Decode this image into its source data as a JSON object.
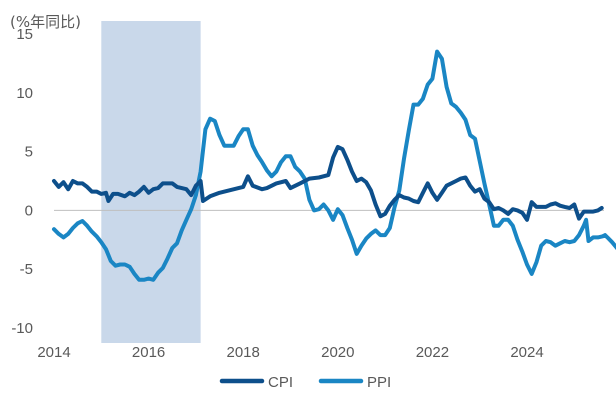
{
  "chart_data": {
    "type": "line",
    "unit_label": "(%年同比)",
    "xlim": [
      2014,
      2025.6
    ],
    "ylim": [
      -10,
      15
    ],
    "x_ticks": [
      2014,
      2016,
      2018,
      2020,
      2022,
      2024
    ],
    "x_tick_labels": [
      "2014",
      "2016",
      "2018",
      "2020",
      "2022",
      "2024"
    ],
    "y_ticks": [
      15,
      10,
      5,
      0,
      -5,
      -10
    ],
    "y_tick_labels": [
      "15",
      "10",
      "5",
      "0",
      "-5",
      "-10"
    ],
    "shaded_region": [
      2015.0,
      2017.1
    ],
    "colors": {
      "CPI": "#0d4f8b",
      "PPI": "#1a86c4",
      "shade": "#c9d8ea",
      "axis": "#bfbfbf"
    },
    "legend": [
      "CPI",
      "PPI"
    ],
    "legend_position": "bottom-center",
    "series": [
      {
        "name": "CPI",
        "points": [
          [
            2014.0,
            2.5
          ],
          [
            2014.1,
            2.0
          ],
          [
            2014.2,
            2.4
          ],
          [
            2014.3,
            1.8
          ],
          [
            2014.4,
            2.5
          ],
          [
            2014.5,
            2.3
          ],
          [
            2014.6,
            2.3
          ],
          [
            2014.7,
            2.0
          ],
          [
            2014.8,
            1.6
          ],
          [
            2014.9,
            1.6
          ],
          [
            2015.0,
            1.4
          ],
          [
            2015.1,
            1.5
          ],
          [
            2015.15,
            0.8
          ],
          [
            2015.25,
            1.4
          ],
          [
            2015.35,
            1.4
          ],
          [
            2015.5,
            1.2
          ],
          [
            2015.6,
            1.5
          ],
          [
            2015.7,
            1.3
          ],
          [
            2015.8,
            1.6
          ],
          [
            2015.9,
            2.0
          ],
          [
            2016.0,
            1.5
          ],
          [
            2016.1,
            1.8
          ],
          [
            2016.2,
            1.9
          ],
          [
            2016.3,
            2.3
          ],
          [
            2016.4,
            2.3
          ],
          [
            2016.5,
            2.3
          ],
          [
            2016.6,
            2.0
          ],
          [
            2016.7,
            1.9
          ],
          [
            2016.8,
            1.8
          ],
          [
            2016.9,
            1.3
          ],
          [
            2017.0,
            2.1
          ],
          [
            2017.1,
            2.5
          ],
          [
            2017.15,
            0.8
          ],
          [
            2017.3,
            1.2
          ],
          [
            2017.5,
            1.5
          ],
          [
            2017.7,
            1.7
          ],
          [
            2017.9,
            1.9
          ],
          [
            2018.0,
            2.0
          ],
          [
            2018.1,
            2.9
          ],
          [
            2018.2,
            2.1
          ],
          [
            2018.4,
            1.8
          ],
          [
            2018.5,
            1.9
          ],
          [
            2018.7,
            2.3
          ],
          [
            2018.9,
            2.5
          ],
          [
            2019.0,
            1.9
          ],
          [
            2019.2,
            2.3
          ],
          [
            2019.4,
            2.7
          ],
          [
            2019.6,
            2.8
          ],
          [
            2019.8,
            3.0
          ],
          [
            2019.9,
            4.5
          ],
          [
            2020.0,
            5.4
          ],
          [
            2020.1,
            5.2
          ],
          [
            2020.2,
            4.3
          ],
          [
            2020.3,
            3.3
          ],
          [
            2020.4,
            2.5
          ],
          [
            2020.5,
            2.7
          ],
          [
            2020.6,
            2.4
          ],
          [
            2020.7,
            1.7
          ],
          [
            2020.8,
            0.5
          ],
          [
            2020.9,
            -0.5
          ],
          [
            2021.0,
            -0.3
          ],
          [
            2021.1,
            0.4
          ],
          [
            2021.2,
            0.9
          ],
          [
            2021.3,
            1.3
          ],
          [
            2021.4,
            1.1
          ],
          [
            2021.5,
            1.0
          ],
          [
            2021.6,
            0.8
          ],
          [
            2021.7,
            0.7
          ],
          [
            2021.8,
            1.5
          ],
          [
            2021.9,
            2.3
          ],
          [
            2022.0,
            1.5
          ],
          [
            2022.1,
            0.9
          ],
          [
            2022.2,
            1.5
          ],
          [
            2022.3,
            2.1
          ],
          [
            2022.5,
            2.5
          ],
          [
            2022.6,
            2.7
          ],
          [
            2022.7,
            2.8
          ],
          [
            2022.8,
            2.1
          ],
          [
            2022.9,
            1.6
          ],
          [
            2023.0,
            1.8
          ],
          [
            2023.1,
            1.0
          ],
          [
            2023.2,
            0.7
          ],
          [
            2023.3,
            0.1
          ],
          [
            2023.4,
            0.2
          ],
          [
            2023.5,
            0.0
          ],
          [
            2023.6,
            -0.3
          ],
          [
            2023.7,
            0.1
          ],
          [
            2023.8,
            0.0
          ],
          [
            2023.9,
            -0.2
          ],
          [
            2024.0,
            -0.8
          ],
          [
            2024.1,
            0.7
          ],
          [
            2024.2,
            0.3
          ],
          [
            2024.3,
            0.3
          ],
          [
            2024.4,
            0.3
          ],
          [
            2024.5,
            0.5
          ],
          [
            2024.6,
            0.6
          ],
          [
            2024.7,
            0.4
          ],
          [
            2024.8,
            0.3
          ],
          [
            2024.9,
            0.2
          ],
          [
            2025.0,
            0.5
          ],
          [
            2025.1,
            -0.7
          ],
          [
            2025.2,
            -0.1
          ],
          [
            2025.3,
            -0.1
          ],
          [
            2025.4,
            -0.1
          ],
          [
            2025.5,
            0.0
          ],
          [
            2025.58,
            0.2
          ]
        ]
      },
      {
        "name": "PPI",
        "points": [
          [
            2014.0,
            -1.6
          ],
          [
            2014.1,
            -2.0
          ],
          [
            2014.2,
            -2.3
          ],
          [
            2014.3,
            -2.0
          ],
          [
            2014.4,
            -1.5
          ],
          [
            2014.5,
            -1.1
          ],
          [
            2014.6,
            -0.9
          ],
          [
            2014.7,
            -1.3
          ],
          [
            2014.8,
            -1.8
          ],
          [
            2014.9,
            -2.2
          ],
          [
            2015.0,
            -2.7
          ],
          [
            2015.1,
            -3.3
          ],
          [
            2015.2,
            -4.3
          ],
          [
            2015.3,
            -4.7
          ],
          [
            2015.4,
            -4.6
          ],
          [
            2015.5,
            -4.6
          ],
          [
            2015.6,
            -4.8
          ],
          [
            2015.7,
            -5.4
          ],
          [
            2015.8,
            -5.9
          ],
          [
            2015.9,
            -5.9
          ],
          [
            2016.0,
            -5.8
          ],
          [
            2016.1,
            -5.9
          ],
          [
            2016.2,
            -5.3
          ],
          [
            2016.3,
            -4.9
          ],
          [
            2016.4,
            -4.1
          ],
          [
            2016.5,
            -3.2
          ],
          [
            2016.6,
            -2.8
          ],
          [
            2016.7,
            -1.7
          ],
          [
            2016.8,
            -0.8
          ],
          [
            2016.9,
            0.1
          ],
          [
            2017.0,
            1.3
          ],
          [
            2017.1,
            3.3
          ],
          [
            2017.2,
            6.9
          ],
          [
            2017.3,
            7.8
          ],
          [
            2017.4,
            7.6
          ],
          [
            2017.5,
            6.4
          ],
          [
            2017.6,
            5.5
          ],
          [
            2017.7,
            5.5
          ],
          [
            2017.8,
            5.5
          ],
          [
            2017.9,
            6.3
          ],
          [
            2018.0,
            6.9
          ],
          [
            2018.1,
            6.9
          ],
          [
            2018.2,
            5.5
          ],
          [
            2018.3,
            4.7
          ],
          [
            2018.4,
            4.1
          ],
          [
            2018.5,
            3.4
          ],
          [
            2018.6,
            2.9
          ],
          [
            2018.7,
            3.3
          ],
          [
            2018.8,
            4.1
          ],
          [
            2018.9,
            4.6
          ],
          [
            2019.0,
            4.6
          ],
          [
            2019.1,
            3.7
          ],
          [
            2019.2,
            3.3
          ],
          [
            2019.3,
            2.7
          ],
          [
            2019.4,
            0.9
          ],
          [
            2019.5,
            0.0
          ],
          [
            2019.6,
            0.1
          ],
          [
            2019.7,
            0.5
          ],
          [
            2019.8,
            0.0
          ],
          [
            2019.9,
            -0.8
          ],
          [
            2020.0,
            0.1
          ],
          [
            2020.1,
            -0.4
          ],
          [
            2020.2,
            -1.5
          ],
          [
            2020.3,
            -2.5
          ],
          [
            2020.4,
            -3.7
          ],
          [
            2020.5,
            -3.0
          ],
          [
            2020.6,
            -2.4
          ],
          [
            2020.7,
            -2.0
          ],
          [
            2020.8,
            -1.7
          ],
          [
            2020.9,
            -2.1
          ],
          [
            2021.0,
            -2.1
          ],
          [
            2021.1,
            -1.5
          ],
          [
            2021.2,
            0.3
          ],
          [
            2021.3,
            1.7
          ],
          [
            2021.4,
            4.4
          ],
          [
            2021.5,
            6.8
          ],
          [
            2021.6,
            9.0
          ],
          [
            2021.7,
            9.0
          ],
          [
            2021.8,
            9.5
          ],
          [
            2021.9,
            10.7
          ],
          [
            2022.0,
            11.2
          ],
          [
            2022.1,
            13.5
          ],
          [
            2022.2,
            12.9
          ],
          [
            2022.3,
            10.5
          ],
          [
            2022.4,
            9.1
          ],
          [
            2022.5,
            8.8
          ],
          [
            2022.6,
            8.3
          ],
          [
            2022.7,
            7.7
          ],
          [
            2022.8,
            6.4
          ],
          [
            2022.9,
            6.1
          ],
          [
            2023.0,
            4.2
          ],
          [
            2023.1,
            2.3
          ],
          [
            2023.2,
            0.5
          ],
          [
            2023.3,
            -1.3
          ],
          [
            2023.4,
            -1.3
          ],
          [
            2023.5,
            -0.8
          ],
          [
            2023.6,
            -0.8
          ],
          [
            2023.7,
            -1.3
          ],
          [
            2023.8,
            -2.5
          ],
          [
            2023.9,
            -3.5
          ],
          [
            2024.0,
            -4.6
          ],
          [
            2024.1,
            -5.4
          ],
          [
            2024.2,
            -4.4
          ],
          [
            2024.3,
            -3.0
          ],
          [
            2024.4,
            -2.6
          ],
          [
            2024.5,
            -2.7
          ],
          [
            2024.6,
            -3.0
          ],
          [
            2024.7,
            -2.8
          ],
          [
            2024.8,
            -2.6
          ],
          [
            2024.9,
            -2.7
          ],
          [
            2025.0,
            -2.6
          ],
          [
            2025.1,
            -2.1
          ],
          [
            2025.2,
            -1.3
          ],
          [
            2025.25,
            -0.8
          ],
          [
            2025.3,
            -2.6
          ],
          [
            2025.4,
            -2.3
          ],
          [
            2025.5,
            -2.3
          ],
          [
            2025.6,
            -2.2
          ],
          [
            2025.65,
            -2.1
          ],
          [
            2025.7,
            -2.3
          ],
          [
            2025.8,
            -2.7
          ],
          [
            2025.9,
            -3.2
          ],
          [
            2025.98,
            -3.6
          ]
        ]
      }
    ]
  }
}
